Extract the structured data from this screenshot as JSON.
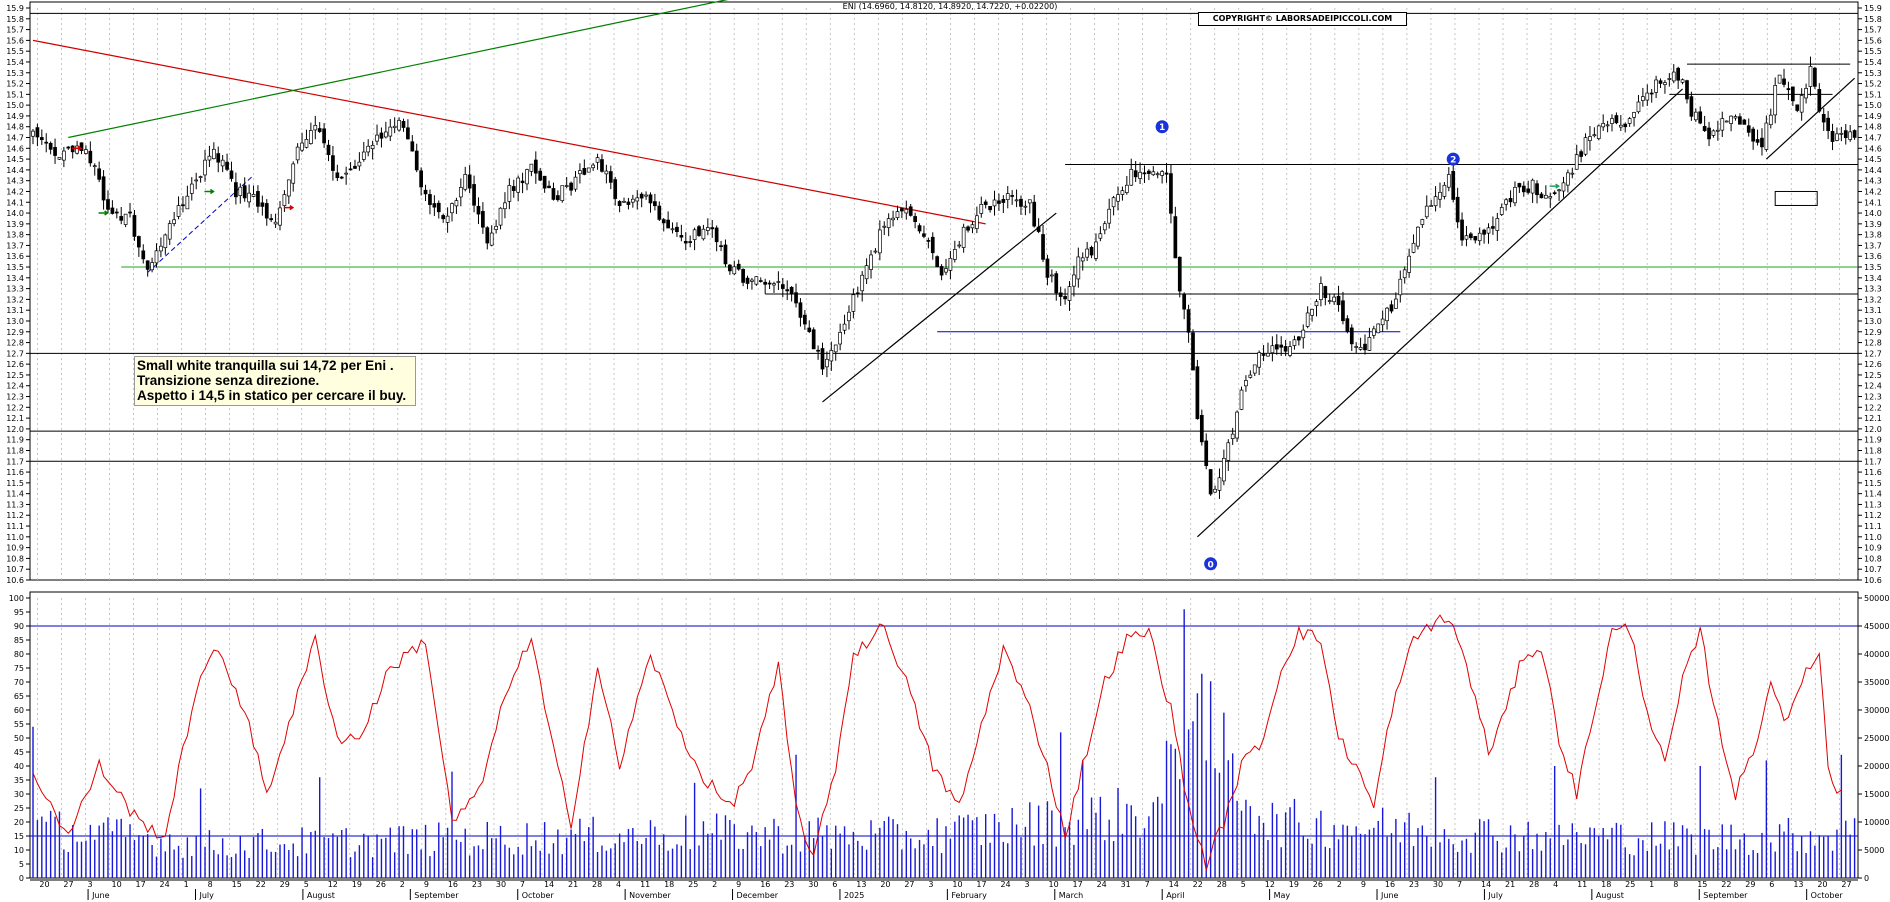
{
  "header": "ENI (14.6960, 14.8120, 14.8920, 14.7220, +0.02200)",
  "copyright": "COPYRIGHT© LABORSADEIPICCOLI.COM",
  "note": [
    "Small white tranquilla sui 14,72 per Eni .",
    "Transizione senza direzione.",
    "Aspetto i 14,5 in statico per cercare il buy."
  ],
  "chart_data": [
    {
      "type": "candlestick",
      "title": "",
      "yaxis": {
        "min": 10.6,
        "max": 15.9,
        "step": 0.1
      },
      "xaxis": {
        "months": [
          "June",
          "July",
          "August",
          "September",
          "October",
          "November",
          "December",
          "2025",
          "February",
          "March",
          "April",
          "May",
          "June",
          "July",
          "August",
          "September",
          "October"
        ],
        "day_ticks": [
          "20",
          "27",
          "3",
          "10",
          "17",
          "24",
          "1",
          "8",
          "15",
          "22",
          "29",
          "5",
          "12",
          "19",
          "26",
          "2",
          "9",
          "16",
          "23",
          "30",
          "7",
          "14",
          "21",
          "28",
          "4",
          "11",
          "18",
          "25",
          "2",
          "9",
          "16",
          "23",
          "30",
          "6",
          "13",
          "20",
          "27",
          "3",
          "10",
          "17",
          "24",
          "3",
          "10",
          "17",
          "24",
          "31",
          "7",
          "14",
          "22",
          "28",
          "5",
          "12",
          "19",
          "26",
          "2",
          "9",
          "16",
          "23",
          "30",
          "7",
          "14",
          "21",
          "28",
          "4",
          "11",
          "18",
          "25",
          "1",
          "8",
          "15",
          "22",
          "29",
          "6",
          "13",
          "20",
          "27"
        ]
      },
      "waypoints": [
        {
          "i": 0,
          "c": 14.75
        },
        {
          "i": 6,
          "c": 14.55
        },
        {
          "i": 12,
          "c": 14.6
        },
        {
          "i": 17,
          "c": 14.05
        },
        {
          "i": 22,
          "c": 13.95
        },
        {
          "i": 26,
          "c": 13.5
        },
        {
          "i": 31,
          "c": 13.85
        },
        {
          "i": 36,
          "c": 14.25
        },
        {
          "i": 41,
          "c": 14.6
        },
        {
          "i": 46,
          "c": 14.2
        },
        {
          "i": 51,
          "c": 14.1
        },
        {
          "i": 55,
          "c": 13.9
        },
        {
          "i": 59,
          "c": 14.5
        },
        {
          "i": 64,
          "c": 14.85
        },
        {
          "i": 69,
          "c": 14.3
        },
        {
          "i": 74,
          "c": 14.5
        },
        {
          "i": 79,
          "c": 14.75
        },
        {
          "i": 84,
          "c": 14.85
        },
        {
          "i": 88,
          "c": 14.2
        },
        {
          "i": 93,
          "c": 13.95
        },
        {
          "i": 98,
          "c": 14.3
        },
        {
          "i": 103,
          "c": 13.7
        },
        {
          "i": 108,
          "c": 14.2
        },
        {
          "i": 113,
          "c": 14.4
        },
        {
          "i": 118,
          "c": 14.15
        },
        {
          "i": 123,
          "c": 14.3
        },
        {
          "i": 128,
          "c": 14.5
        },
        {
          "i": 133,
          "c": 14.1
        },
        {
          "i": 138,
          "c": 14.15
        },
        {
          "i": 143,
          "c": 13.95
        },
        {
          "i": 148,
          "c": 13.75
        },
        {
          "i": 153,
          "c": 13.9
        },
        {
          "i": 158,
          "c": 13.5
        },
        {
          "i": 163,
          "c": 13.35
        },
        {
          "i": 168,
          "c": 13.4
        },
        {
          "i": 172,
          "c": 13.3
        },
        {
          "i": 176,
          "c": 12.85
        },
        {
          "i": 179,
          "c": 12.6
        },
        {
          "i": 183,
          "c": 12.85
        },
        {
          "i": 187,
          "c": 13.3
        },
        {
          "i": 192,
          "c": 13.8
        },
        {
          "i": 197,
          "c": 14.05
        },
        {
          "i": 201,
          "c": 13.85
        },
        {
          "i": 206,
          "c": 13.45
        },
        {
          "i": 210,
          "c": 13.75
        },
        {
          "i": 215,
          "c": 14.05
        },
        {
          "i": 220,
          "c": 14.15
        },
        {
          "i": 226,
          "c": 14.1
        },
        {
          "i": 230,
          "c": 13.45
        },
        {
          "i": 234,
          "c": 13.15
        },
        {
          "i": 237,
          "c": 13.55
        },
        {
          "i": 241,
          "c": 13.7
        },
        {
          "i": 245,
          "c": 14.1
        },
        {
          "i": 249,
          "c": 14.35
        },
        {
          "i": 253,
          "c": 14.4
        },
        {
          "i": 257,
          "c": 14.3
        },
        {
          "i": 260,
          "c": 13.3
        },
        {
          "i": 262,
          "c": 12.9
        },
        {
          "i": 264,
          "c": 12.1
        },
        {
          "i": 267,
          "c": 11.4
        },
        {
          "i": 270,
          "c": 11.7
        },
        {
          "i": 274,
          "c": 12.3
        },
        {
          "i": 278,
          "c": 12.75
        },
        {
          "i": 282,
          "c": 12.7
        },
        {
          "i": 287,
          "c": 12.85
        },
        {
          "i": 292,
          "c": 13.3
        },
        {
          "i": 295,
          "c": 13.2
        },
        {
          "i": 298,
          "c": 12.9
        },
        {
          "i": 301,
          "c": 12.7
        },
        {
          "i": 305,
          "c": 12.95
        },
        {
          "i": 309,
          "c": 13.2
        },
        {
          "i": 313,
          "c": 13.75
        },
        {
          "i": 317,
          "c": 14.1
        },
        {
          "i": 321,
          "c": 14.3
        },
        {
          "i": 324,
          "c": 13.75
        },
        {
          "i": 328,
          "c": 13.8
        },
        {
          "i": 332,
          "c": 13.95
        },
        {
          "i": 336,
          "c": 14.2
        },
        {
          "i": 340,
          "c": 14.25
        },
        {
          "i": 344,
          "c": 14.15
        },
        {
          "i": 348,
          "c": 14.35
        },
        {
          "i": 352,
          "c": 14.65
        },
        {
          "i": 356,
          "c": 14.85
        },
        {
          "i": 360,
          "c": 14.8
        },
        {
          "i": 364,
          "c": 15.0
        },
        {
          "i": 368,
          "c": 15.2
        },
        {
          "i": 371,
          "c": 15.3
        },
        {
          "i": 374,
          "c": 15.25
        },
        {
          "i": 376,
          "c": 14.95
        },
        {
          "i": 380,
          "c": 14.7
        },
        {
          "i": 384,
          "c": 14.9
        },
        {
          "i": 388,
          "c": 14.85
        },
        {
          "i": 392,
          "c": 14.6
        },
        {
          "i": 396,
          "c": 15.3
        },
        {
          "i": 400,
          "c": 14.9
        },
        {
          "i": 403,
          "c": 15.3
        },
        {
          "i": 405,
          "c": 15.0
        },
        {
          "i": 407,
          "c": 14.72
        }
      ],
      "annotations": {
        "wave_labels": [
          {
            "text": "0",
            "i": 267,
            "price": 10.75
          },
          {
            "text": "1",
            "i": 256,
            "price": 14.8
          },
          {
            "text": "2",
            "i": 322,
            "price": 14.5
          }
        ],
        "levels": [
          15.85,
          14.45,
          13.5,
          13.25,
          12.9,
          12.7,
          11.98,
          11.7
        ],
        "trendlines": [
          {
            "color": "#d00000",
            "from": {
              "i": 0,
              "price": 15.6
            },
            "to": {
              "i": 216,
              "price": 13.9
            }
          },
          {
            "color": "#008000",
            "from": {
              "i": 8,
              "price": 14.7
            },
            "to": {
              "i": 160,
              "price": 16.0
            }
          },
          {
            "color": "#000000",
            "from": {
              "i": 179,
              "price": 12.25
            },
            "to": {
              "i": 232,
              "price": 14.0
            }
          },
          {
            "color": "#000000",
            "from": {
              "i": 264,
              "price": 11.0
            },
            "to": {
              "i": 374,
              "price": 15.15
            }
          },
          {
            "color": "#000000",
            "from": {
              "i": 393,
              "price": 14.5
            },
            "to": {
              "i": 413,
              "price": 15.25
            }
          }
        ]
      }
    },
    {
      "type": "bar+line",
      "left_axis": {
        "min": 0,
        "max": 100,
        "step": 5
      },
      "right_axis": {
        "min": 0,
        "max": 50000,
        "step": 5000
      },
      "levels_left": [
        90,
        15
      ],
      "volume_waypoints": [
        {
          "i": 0,
          "v": 9000
        },
        {
          "i": 40,
          "v": 6000
        },
        {
          "i": 100,
          "v": 7000
        },
        {
          "i": 150,
          "v": 8000
        },
        {
          "i": 200,
          "v": 7500
        },
        {
          "i": 255,
          "v": 12000
        },
        {
          "i": 262,
          "v": 30000
        },
        {
          "i": 280,
          "v": 10000
        },
        {
          "i": 330,
          "v": 8000
        },
        {
          "i": 380,
          "v": 7000
        },
        {
          "i": 413,
          "v": 8000
        }
      ],
      "volume_spikes": [
        {
          "i": 0,
          "v": 27000
        },
        {
          "i": 38,
          "v": 16000
        },
        {
          "i": 65,
          "v": 18000
        },
        {
          "i": 95,
          "v": 19000
        },
        {
          "i": 150,
          "v": 17000
        },
        {
          "i": 173,
          "v": 22000
        },
        {
          "i": 233,
          "v": 26000
        },
        {
          "i": 238,
          "v": 21000
        },
        {
          "i": 261,
          "v": 48000
        },
        {
          "i": 263,
          "v": 28000
        },
        {
          "i": 264,
          "v": 33000
        },
        {
          "i": 266,
          "v": 21000
        },
        {
          "i": 318,
          "v": 18000
        },
        {
          "i": 345,
          "v": 20000
        },
        {
          "i": 378,
          "v": 20000
        },
        {
          "i": 393,
          "v": 21000
        },
        {
          "i": 410,
          "v": 22000
        }
      ],
      "oscillator_waypoints": [
        {
          "i": 0,
          "v": 38
        },
        {
          "i": 8,
          "v": 15
        },
        {
          "i": 15,
          "v": 40
        },
        {
          "i": 24,
          "v": 20
        },
        {
          "i": 30,
          "v": 15
        },
        {
          "i": 37,
          "v": 68
        },
        {
          "i": 42,
          "v": 82
        },
        {
          "i": 48,
          "v": 60
        },
        {
          "i": 53,
          "v": 30
        },
        {
          "i": 59,
          "v": 60
        },
        {
          "i": 64,
          "v": 85
        },
        {
          "i": 69,
          "v": 50
        },
        {
          "i": 74,
          "v": 50
        },
        {
          "i": 81,
          "v": 75
        },
        {
          "i": 89,
          "v": 85
        },
        {
          "i": 95,
          "v": 20
        },
        {
          "i": 101,
          "v": 30
        },
        {
          "i": 108,
          "v": 70
        },
        {
          "i": 113,
          "v": 85
        },
        {
          "i": 118,
          "v": 45
        },
        {
          "i": 122,
          "v": 20
        },
        {
          "i": 128,
          "v": 75
        },
        {
          "i": 133,
          "v": 40
        },
        {
          "i": 140,
          "v": 80
        },
        {
          "i": 146,
          "v": 55
        },
        {
          "i": 151,
          "v": 38
        },
        {
          "i": 158,
          "v": 25
        },
        {
          "i": 163,
          "v": 40
        },
        {
          "i": 169,
          "v": 75
        },
        {
          "i": 173,
          "v": 25
        },
        {
          "i": 177,
          "v": 7
        },
        {
          "i": 182,
          "v": 40
        },
        {
          "i": 186,
          "v": 80
        },
        {
          "i": 193,
          "v": 90
        },
        {
          "i": 198,
          "v": 70
        },
        {
          "i": 204,
          "v": 40
        },
        {
          "i": 210,
          "v": 25
        },
        {
          "i": 216,
          "v": 60
        },
        {
          "i": 220,
          "v": 82
        },
        {
          "i": 226,
          "v": 60
        },
        {
          "i": 230,
          "v": 40
        },
        {
          "i": 234,
          "v": 15
        },
        {
          "i": 238,
          "v": 40
        },
        {
          "i": 243,
          "v": 70
        },
        {
          "i": 248,
          "v": 85
        },
        {
          "i": 253,
          "v": 88
        },
        {
          "i": 258,
          "v": 60
        },
        {
          "i": 262,
          "v": 25
        },
        {
          "i": 266,
          "v": 5
        },
        {
          "i": 270,
          "v": 20
        },
        {
          "i": 274,
          "v": 40
        },
        {
          "i": 279,
          "v": 50
        },
        {
          "i": 283,
          "v": 75
        },
        {
          "i": 287,
          "v": 88
        },
        {
          "i": 292,
          "v": 85
        },
        {
          "i": 296,
          "v": 50
        },
        {
          "i": 300,
          "v": 40
        },
        {
          "i": 304,
          "v": 25
        },
        {
          "i": 308,
          "v": 60
        },
        {
          "i": 313,
          "v": 85
        },
        {
          "i": 318,
          "v": 92
        },
        {
          "i": 322,
          "v": 91
        },
        {
          "i": 326,
          "v": 70
        },
        {
          "i": 330,
          "v": 45
        },
        {
          "i": 334,
          "v": 60
        },
        {
          "i": 338,
          "v": 80
        },
        {
          "i": 342,
          "v": 82
        },
        {
          "i": 346,
          "v": 50
        },
        {
          "i": 350,
          "v": 30
        },
        {
          "i": 354,
          "v": 60
        },
        {
          "i": 358,
          "v": 88
        },
        {
          "i": 362,
          "v": 89
        },
        {
          "i": 366,
          "v": 60
        },
        {
          "i": 370,
          "v": 40
        },
        {
          "i": 374,
          "v": 70
        },
        {
          "i": 378,
          "v": 88
        },
        {
          "i": 382,
          "v": 55
        },
        {
          "i": 386,
          "v": 30
        },
        {
          "i": 390,
          "v": 45
        },
        {
          "i": 394,
          "v": 70
        },
        {
          "i": 398,
          "v": 55
        },
        {
          "i": 402,
          "v": 75
        },
        {
          "i": 405,
          "v": 80
        },
        {
          "i": 407,
          "v": 40
        },
        {
          "i": 409,
          "v": 30
        },
        {
          "i": 410,
          "v": 33
        }
      ]
    }
  ],
  "colors": {
    "candle": "#000000",
    "grid": "#b8b8b8",
    "trend_red": "#d00000",
    "trend_green": "#008000",
    "support_blue": "#0000c8",
    "volume": "#1818d8",
    "oscillator": "#e00000",
    "level_green": "#20a020",
    "wave_label_bg": "#1a33d8"
  }
}
